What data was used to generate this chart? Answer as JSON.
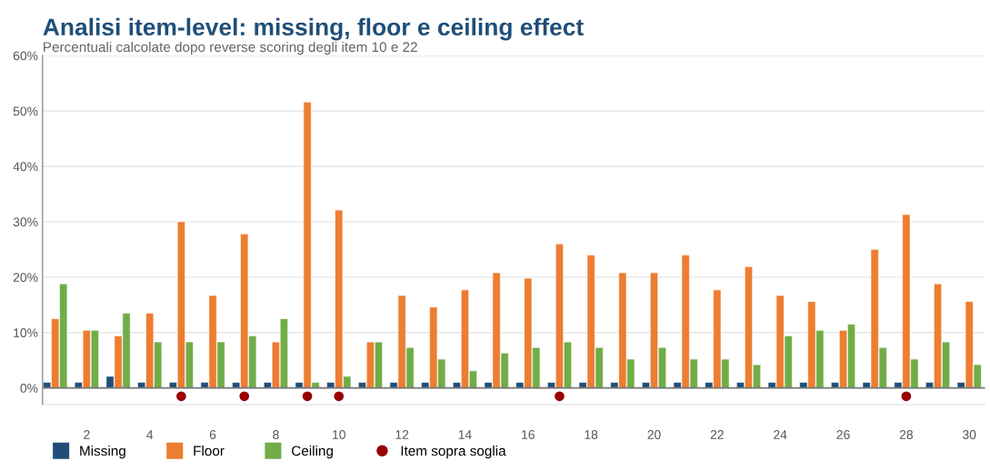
{
  "chart_data": {
    "type": "bar",
    "title": "Analisi item-level: missing, floor e ceiling effect",
    "subtitle": "Percentuali calcolate dopo reverse scoring degli item 10 e 22",
    "x": [
      1,
      2,
      3,
      4,
      5,
      6,
      7,
      8,
      9,
      10,
      11,
      12,
      13,
      14,
      15,
      16,
      17,
      18,
      19,
      20,
      21,
      22,
      23,
      24,
      25,
      26,
      27,
      28,
      29,
      30
    ],
    "series": [
      {
        "name": "Missing",
        "color": "#1f4e79",
        "values": [
          1.0,
          1.0,
          2.1,
          1.0,
          1.0,
          1.0,
          1.0,
          1.0,
          1.0,
          1.0,
          1.0,
          1.0,
          1.0,
          1.0,
          1.0,
          1.0,
          1.0,
          1.0,
          1.0,
          1.0,
          1.0,
          1.0,
          1.0,
          1.0,
          1.0,
          1.0,
          1.0,
          1.0,
          1.0,
          1.0
        ]
      },
      {
        "name": "Floor",
        "color": "#ed7d31",
        "values": [
          12.5,
          10.4,
          9.4,
          13.5,
          30.0,
          16.7,
          27.8,
          8.3,
          51.6,
          32.1,
          8.3,
          16.7,
          14.6,
          17.7,
          20.8,
          19.8,
          26.0,
          24.0,
          20.8,
          20.8,
          24.0,
          17.7,
          21.9,
          16.7,
          15.6,
          10.4,
          25.0,
          31.3,
          18.8,
          15.6
        ]
      },
      {
        "name": "Ceiling",
        "color": "#70ad47",
        "values": [
          18.8,
          10.4,
          13.5,
          8.3,
          8.3,
          8.3,
          9.4,
          12.5,
          1.0,
          2.1,
          8.3,
          7.3,
          5.2,
          3.1,
          6.3,
          7.3,
          8.3,
          7.3,
          5.2,
          7.3,
          5.2,
          5.2,
          4.2,
          9.4,
          10.4,
          11.5,
          7.3,
          5.2,
          8.3,
          4.2
        ]
      },
      {
        "name": "Item sopra soglia",
        "type": "scatter",
        "color": "#990000",
        "x": [
          5,
          7,
          9,
          10,
          17,
          28
        ],
        "values": [
          -1.5,
          -1.5,
          -1.5,
          -1.5,
          -1.5,
          -1.5
        ]
      }
    ],
    "xlim": [
      0.6,
      30.5
    ],
    "xticks": [
      2,
      4,
      6,
      8,
      10,
      12,
      14,
      16,
      18,
      20,
      22,
      24,
      26,
      28,
      30
    ],
    "ylim": [
      -3,
      60
    ],
    "yticks": [
      {
        "value": 0,
        "label": "0%"
      },
      {
        "value": 10,
        "label": "10%"
      },
      {
        "value": 20,
        "label": "20%"
      },
      {
        "value": 30,
        "label": "30%"
      },
      {
        "value": 40,
        "label": "40%"
      },
      {
        "value": 50,
        "label": "50%"
      },
      {
        "value": 60,
        "label": "60%"
      }
    ],
    "ref_lines": [
      {
        "axis": "y",
        "value": 0,
        "color": "#777777"
      }
    ],
    "grid": "y",
    "legend": "bottom",
    "marker": "circle"
  }
}
